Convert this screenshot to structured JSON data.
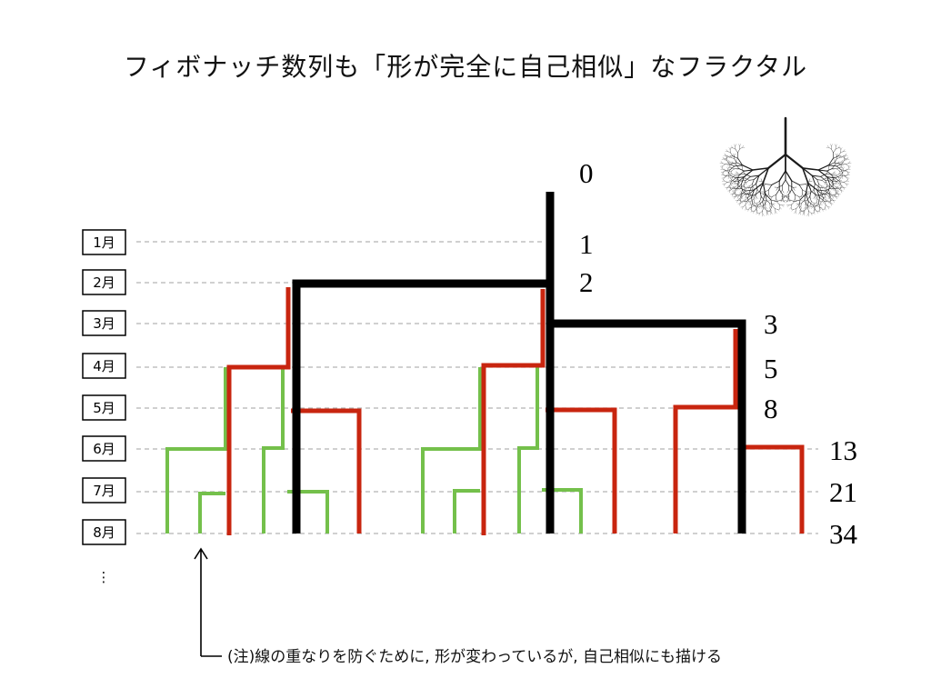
{
  "title": "フィボナッチ数列も「形が完全に自己相似」なフラクタル",
  "months": [
    "1月",
    "2月",
    "3月",
    "4月",
    "5月",
    "6月",
    "7月",
    "8月"
  ],
  "ellipsis": "⋮",
  "fibonacci_numbers": [
    "0",
    "1",
    "2",
    "3",
    "5",
    "8",
    "13",
    "21",
    "34"
  ],
  "note": "(注)線の重なりを防ぐために, 形が変わっているが, 自己相似にも描ける",
  "colors": {
    "generation_1": "#000000",
    "generation_2": "#c8250f",
    "generation_3": "#74c04b",
    "gridline": "#b5b5b5"
  },
  "icons": [
    "fractal-tree-icon",
    "arrow-up-icon"
  ]
}
